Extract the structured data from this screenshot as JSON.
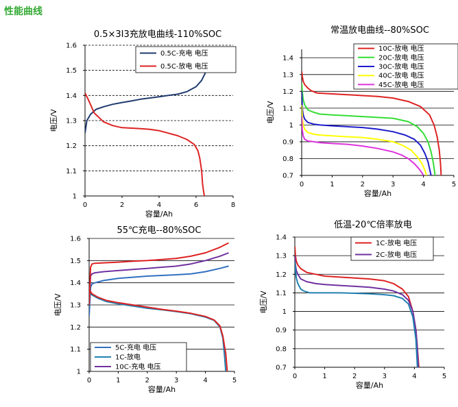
{
  "page_title": "性能曲线",
  "chart_data": [
    {
      "type": "line",
      "title": "0.5×3I3充放电曲线-110%SOC",
      "xlabel": "容量/Ah",
      "ylabel": "电压/V",
      "xlim": [
        0,
        8
      ],
      "ylim": [
        1.0,
        1.6
      ],
      "xticks": [
        "0",
        "2",
        "4",
        "6",
        "8"
      ],
      "yticks": [
        "1",
        "1.1",
        "1.2",
        "1.3",
        "1.4",
        "1.5",
        "1.6"
      ],
      "grid": "horizontal-dashed",
      "legend": "top-right",
      "series": [
        {
          "name": "0.5C-充电 电压",
          "color": "#1f3a6e",
          "x": [
            0,
            0.1,
            0.3,
            0.6,
            1.0,
            1.5,
            2.0,
            2.5,
            3.0,
            3.5,
            4.0,
            4.5,
            5.0,
            5.5,
            6.0,
            6.3,
            6.5
          ],
          "y": [
            1.25,
            1.3,
            1.325,
            1.345,
            1.355,
            1.365,
            1.372,
            1.378,
            1.385,
            1.39,
            1.395,
            1.4,
            1.405,
            1.415,
            1.435,
            1.46,
            1.49
          ]
        },
        {
          "name": "0.5C-放电 电压",
          "color": "#dd2222",
          "x": [
            0,
            0.2,
            0.5,
            1.0,
            1.5,
            1.8,
            2.0,
            2.5,
            3.0,
            3.5,
            4.0,
            4.5,
            5.0,
            5.5,
            5.9,
            6.1,
            6.2,
            6.3,
            6.35,
            6.4,
            6.45
          ],
          "y": [
            1.41,
            1.38,
            1.33,
            1.295,
            1.28,
            1.275,
            1.272,
            1.27,
            1.268,
            1.265,
            1.26,
            1.25,
            1.24,
            1.225,
            1.205,
            1.18,
            1.15,
            1.1,
            1.05,
            1.02,
            1.0
          ]
        }
      ]
    },
    {
      "type": "line",
      "title": "常温放电曲线--80%SOC",
      "xlabel": "容量/Ah",
      "ylabel": "电压/V",
      "xlim": [
        0,
        5
      ],
      "ylim": [
        0.7,
        1.45
      ],
      "xticks": [
        "0",
        "1",
        "2",
        "3",
        "4",
        "5"
      ],
      "yticks": [
        "0.7",
        "0.8",
        "0.9",
        "1",
        "1.1",
        "1.2",
        "1.3",
        "1.4"
      ],
      "grid": "horizontal",
      "legend": "top-right",
      "series": [
        {
          "name": "10C-放电 电压",
          "color": "#dd2222",
          "x": [
            0,
            0.02,
            0.05,
            0.1,
            0.2,
            0.3,
            0.5,
            1.0,
            1.5,
            2.0,
            2.5,
            3.0,
            3.5,
            3.9,
            4.2,
            4.35,
            4.45,
            4.52,
            4.56,
            4.58
          ],
          "y": [
            1.32,
            1.29,
            1.26,
            1.24,
            1.22,
            1.205,
            1.19,
            1.185,
            1.18,
            1.175,
            1.17,
            1.16,
            1.14,
            1.11,
            1.06,
            1.0,
            0.93,
            0.85,
            0.77,
            0.7
          ]
        },
        {
          "name": "20C-放电 电压",
          "color": "#33dd33",
          "x": [
            0,
            0.02,
            0.05,
            0.1,
            0.2,
            0.4,
            0.6,
            1.0,
            1.5,
            2.0,
            2.5,
            3.0,
            3.5,
            3.8,
            4.0,
            4.15,
            4.25,
            4.32,
            4.36,
            4.38
          ],
          "y": [
            1.25,
            1.2,
            1.15,
            1.12,
            1.09,
            1.075,
            1.065,
            1.06,
            1.055,
            1.05,
            1.045,
            1.04,
            1.02,
            0.99,
            0.95,
            0.9,
            0.84,
            0.78,
            0.73,
            0.7
          ]
        },
        {
          "name": "30C-放电 电压",
          "color": "#1c1ccc",
          "x": [
            0,
            0.02,
            0.05,
            0.1,
            0.2,
            0.4,
            0.6,
            1.0,
            1.5,
            2.0,
            2.5,
            3.0,
            3.4,
            3.7,
            3.9,
            4.05,
            4.15,
            4.2,
            4.25
          ],
          "y": [
            1.2,
            1.1,
            1.06,
            1.035,
            1.015,
            1.005,
            1.0,
            0.995,
            0.99,
            0.985,
            0.975,
            0.96,
            0.94,
            0.915,
            0.88,
            0.83,
            0.78,
            0.74,
            0.7
          ]
        },
        {
          "name": "40C-放电 电压",
          "color": "#ffff00",
          "x": [
            0,
            0.02,
            0.05,
            0.1,
            0.2,
            0.4,
            0.6,
            1.0,
            1.5,
            2.0,
            2.5,
            3.0,
            3.3,
            3.6,
            3.8,
            3.95,
            4.05,
            4.1
          ],
          "y": [
            1.12,
            1.04,
            1.0,
            0.975,
            0.955,
            0.945,
            0.94,
            0.935,
            0.93,
            0.925,
            0.915,
            0.9,
            0.88,
            0.85,
            0.81,
            0.77,
            0.73,
            0.7
          ]
        },
        {
          "name": "45C-放电 电压",
          "color": "#dd33dd",
          "x": [
            0,
            0.02,
            0.05,
            0.1,
            0.2,
            0.4,
            0.6,
            1.0,
            1.5,
            2.0,
            2.5,
            3.0,
            3.3,
            3.5,
            3.7,
            3.85,
            3.95,
            4.0
          ],
          "y": [
            1.05,
            0.97,
            0.935,
            0.915,
            0.905,
            0.9,
            0.895,
            0.89,
            0.885,
            0.875,
            0.86,
            0.84,
            0.82,
            0.8,
            0.77,
            0.74,
            0.715,
            0.7
          ]
        }
      ]
    },
    {
      "type": "line",
      "title": "55℃充电--80%SOC",
      "xlabel": "容量/Ah",
      "ylabel": "电压/V",
      "xlim": [
        0,
        5
      ],
      "ylim": [
        1.0,
        1.6
      ],
      "xticks": [
        "0",
        "1",
        "2",
        "3",
        "4",
        "5"
      ],
      "yticks": [
        "1",
        "1.1",
        "1.2",
        "1.3",
        "1.4",
        "1.5",
        "1.6"
      ],
      "grid": "horizontal",
      "legend": "bottom-left",
      "series": [
        {
          "name": "5C-充电 电压",
          "color": "#3070c0",
          "x": [
            0,
            0.05,
            0.1,
            0.2,
            0.5,
            1.0,
            1.5,
            2.0,
            2.5,
            3.0,
            3.5,
            4.0,
            4.5,
            4.8
          ],
          "y": [
            1.25,
            1.38,
            1.395,
            1.4,
            1.41,
            1.42,
            1.425,
            1.43,
            1.433,
            1.436,
            1.44,
            1.45,
            1.465,
            1.475
          ]
        },
        {
          "name": "1C-放电",
          "color": "#2080b0",
          "x": [
            0,
            0.1,
            0.3,
            0.6,
            1.0,
            1.5,
            2.0,
            2.5,
            3.0,
            3.5,
            4.0,
            4.3,
            4.5,
            4.6,
            4.65,
            4.7
          ],
          "y": [
            1.36,
            1.345,
            1.33,
            1.315,
            1.305,
            1.295,
            1.285,
            1.278,
            1.27,
            1.26,
            1.245,
            1.23,
            1.2,
            1.15,
            1.08,
            1.0
          ]
        },
        {
          "name": "10C-充电 电压",
          "color": "#7030a0",
          "x": [
            0,
            0.05,
            0.1,
            0.2,
            0.5,
            1.0,
            1.5,
            2.0,
            2.5,
            3.0,
            3.5,
            4.0,
            4.5,
            4.8
          ],
          "y": [
            1.3,
            1.43,
            1.44,
            1.445,
            1.45,
            1.455,
            1.46,
            1.465,
            1.47,
            1.475,
            1.485,
            1.5,
            1.52,
            1.535
          ]
        },
        {
          "name": "",
          "color": "#dd2222",
          "x": [
            0,
            0.05,
            0.1,
            0.2,
            0.5,
            1.0,
            1.5,
            2.0,
            2.5,
            3.0,
            3.5,
            4.0,
            4.5,
            4.8
          ],
          "y": [
            1.3,
            1.47,
            1.485,
            1.488,
            1.49,
            1.493,
            1.497,
            1.5,
            1.505,
            1.51,
            1.52,
            1.535,
            1.56,
            1.58
          ]
        },
        {
          "name": "",
          "color": "#dd2222",
          "x": [
            0,
            0.1,
            0.3,
            0.6,
            1.0,
            1.5,
            2.0,
            2.5,
            3.0,
            3.5,
            4.0,
            4.3,
            4.5,
            4.6,
            4.7,
            4.75
          ],
          "y": [
            1.37,
            1.35,
            1.335,
            1.32,
            1.31,
            1.3,
            1.29,
            1.28,
            1.272,
            1.262,
            1.248,
            1.232,
            1.205,
            1.16,
            1.08,
            1.0
          ]
        }
      ]
    },
    {
      "type": "line",
      "title": "低温-20℃倍率放电",
      "xlabel": "容量/Ah",
      "ylabel": "电压/V",
      "xlim": [
        0,
        5
      ],
      "ylim": [
        0.7,
        1.4
      ],
      "xticks": [
        "0",
        "1",
        "2",
        "3",
        "4",
        "5"
      ],
      "yticks": [
        "0.7",
        "0.8",
        "0.9",
        "1",
        "1.1",
        "1.2",
        "1.3",
        "1.4"
      ],
      "grid": "horizontal",
      "legend": "top-right",
      "series": [
        {
          "name": "1C-放电 电压",
          "color": "#dd2222",
          "x": [
            0,
            0.02,
            0.05,
            0.1,
            0.2,
            0.4,
            0.7,
            1.0,
            1.5,
            2.0,
            2.5,
            3.0,
            3.3,
            3.6,
            3.8,
            3.95,
            4.05,
            4.1,
            4.15
          ],
          "y": [
            1.35,
            1.3,
            1.27,
            1.25,
            1.23,
            1.21,
            1.2,
            1.19,
            1.185,
            1.18,
            1.175,
            1.165,
            1.15,
            1.12,
            1.08,
            1.0,
            0.9,
            0.8,
            0.7
          ]
        },
        {
          "name": "2C-放电 电压",
          "color": "#7030a0",
          "x": [
            0,
            0.02,
            0.05,
            0.1,
            0.2,
            0.4,
            0.7,
            1.0,
            1.5,
            2.0,
            2.5,
            3.0,
            3.3,
            3.6,
            3.8,
            3.95,
            4.05,
            4.1,
            4.13
          ],
          "y": [
            1.3,
            1.25,
            1.22,
            1.2,
            1.175,
            1.16,
            1.15,
            1.145,
            1.14,
            1.135,
            1.13,
            1.12,
            1.11,
            1.09,
            1.06,
            1.0,
            0.9,
            0.8,
            0.7
          ]
        },
        {
          "name": "",
          "color": "#2080b0",
          "x": [
            0,
            0.02,
            0.05,
            0.1,
            0.2,
            0.3,
            0.5,
            0.8,
            1.0,
            1.5,
            2.0,
            2.5,
            3.0,
            3.3,
            3.6,
            3.8,
            3.95,
            4.05,
            4.1
          ],
          "y": [
            1.27,
            1.22,
            1.18,
            1.15,
            1.12,
            1.11,
            1.1,
            1.1,
            1.1,
            1.1,
            1.098,
            1.095,
            1.09,
            1.085,
            1.07,
            1.04,
            0.97,
            0.85,
            0.7
          ]
        }
      ]
    }
  ]
}
